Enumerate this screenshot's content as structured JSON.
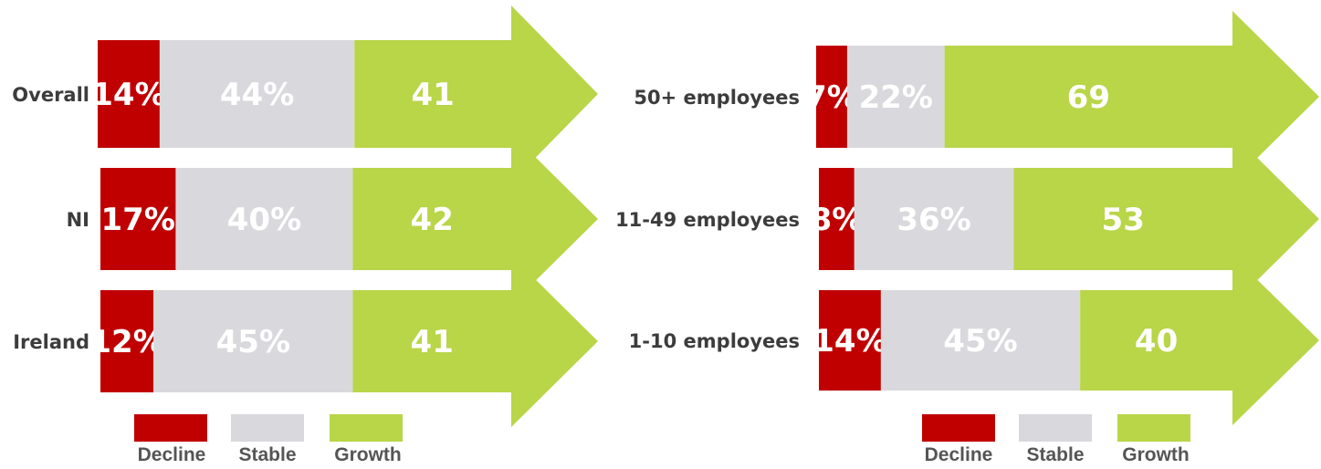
{
  "colors": {
    "decline": "#c00000",
    "stable": "#d9d9dd",
    "growth": "#b9d548"
  },
  "legend": {
    "decline": "Decline",
    "stable": "Stable",
    "growth": "Growth"
  },
  "chart_data": [
    {
      "type": "bar",
      "stacked": true,
      "orientation": "horizontal",
      "categories": [
        "Overall",
        "NI",
        "Ireland"
      ],
      "series": [
        {
          "name": "Decline",
          "values": [
            14,
            17,
            12
          ],
          "labels": [
            "14%",
            "17%",
            "12%"
          ]
        },
        {
          "name": "Stable",
          "values": [
            44,
            40,
            45
          ],
          "labels": [
            "44%",
            "40%",
            "45%"
          ]
        },
        {
          "name": "Growth",
          "values": [
            41,
            42,
            41
          ],
          "labels": [
            "41",
            "42",
            "41"
          ]
        }
      ],
      "legend_position": "bottom"
    },
    {
      "type": "bar",
      "stacked": true,
      "orientation": "horizontal",
      "categories": [
        "50+ employees",
        "11-49 employees",
        "1-10 employees"
      ],
      "series": [
        {
          "name": "Decline",
          "values": [
            7,
            8,
            14
          ],
          "labels": [
            "7%",
            "8%",
            "14%"
          ]
        },
        {
          "name": "Stable",
          "values": [
            22,
            36,
            45
          ],
          "labels": [
            "22%",
            "36%",
            "45%"
          ]
        },
        {
          "name": "Growth",
          "values": [
            69,
            53,
            40
          ],
          "labels": [
            "69",
            "53",
            "40"
          ]
        }
      ],
      "legend_position": "bottom"
    }
  ]
}
